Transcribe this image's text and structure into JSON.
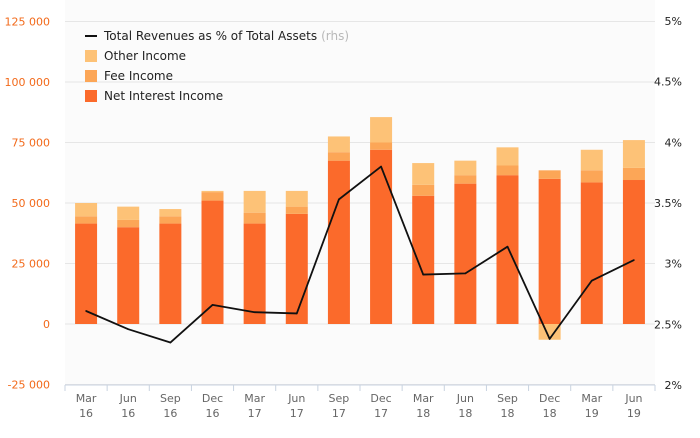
{
  "chart_data": {
    "type": "bar",
    "stacked": true,
    "categories": [
      [
        "Mar",
        "16"
      ],
      [
        "Jun",
        "16"
      ],
      [
        "Sep",
        "16"
      ],
      [
        "Dec",
        "16"
      ],
      [
        "Mar",
        "17"
      ],
      [
        "Jun",
        "17"
      ],
      [
        "Sep",
        "17"
      ],
      [
        "Dec",
        "17"
      ],
      [
        "Mar",
        "18"
      ],
      [
        "Jun",
        "18"
      ],
      [
        "Sep",
        "18"
      ],
      [
        "Dec",
        "18"
      ],
      [
        "Mar",
        "19"
      ],
      [
        "Jun",
        "19"
      ]
    ],
    "series": [
      {
        "name": "Net Interest Income",
        "color": "#fb6a2b",
        "values": [
          41500,
          40000,
          41500,
          51000,
          41500,
          45500,
          67500,
          72000,
          53000,
          58000,
          61500,
          60000,
          58500,
          59500
        ]
      },
      {
        "name": "Fee Income",
        "color": "#fca657",
        "values": [
          3000,
          3000,
          3000,
          3500,
          4500,
          3000,
          3500,
          3000,
          4500,
          3500,
          4000,
          3500,
          5000,
          5000
        ]
      },
      {
        "name": "Other Income",
        "color": "#fdc277",
        "values": [
          5500,
          5500,
          3000,
          500,
          9000,
          6500,
          6500,
          10500,
          9000,
          6000,
          7500,
          -6500,
          8500,
          11500
        ]
      }
    ],
    "line_series": {
      "name": "Total Revenues as % of Total Assets",
      "name_suffix": "(rhs)",
      "axis": "right",
      "color": "#111111",
      "values": [
        2.61,
        2.46,
        2.35,
        2.66,
        2.6,
        2.59,
        3.53,
        3.8,
        2.91,
        2.92,
        3.14,
        2.38,
        2.86,
        3.03
      ]
    },
    "y_left": {
      "ylim": [
        -25000,
        125000
      ],
      "ticks": [
        -25000,
        0,
        25000,
        50000,
        75000,
        100000,
        125000
      ],
      "tick_labels": [
        "-25 000",
        "0",
        "25 000",
        "50 000",
        "75 000",
        "100 000",
        "125 000"
      ]
    },
    "y_right": {
      "ylim": [
        2,
        5
      ],
      "ticks": [
        2,
        2.5,
        3,
        3.5,
        4,
        4.5,
        5
      ],
      "tick_labels": [
        "2%",
        "2.5%",
        "3%",
        "3.5%",
        "4%",
        "4.5%",
        "5%"
      ]
    },
    "grid": true,
    "legend_position": "top-left",
    "legend": [
      {
        "label": "Total Revenues as % of Total Assets",
        "suffix": "(rhs)",
        "kind": "line"
      },
      {
        "label": "Other Income",
        "kind": "box",
        "color": "#fdc277"
      },
      {
        "label": "Fee Income",
        "kind": "box",
        "color": "#fca657"
      },
      {
        "label": "Net Interest Income",
        "kind": "box",
        "color": "#fb6a2b"
      }
    ],
    "colors": {
      "left_axis_text": "#f26a1b",
      "right_axis_text": "#222222",
      "grid": "#e6e6e6",
      "x_axis_text": "#666666"
    }
  }
}
